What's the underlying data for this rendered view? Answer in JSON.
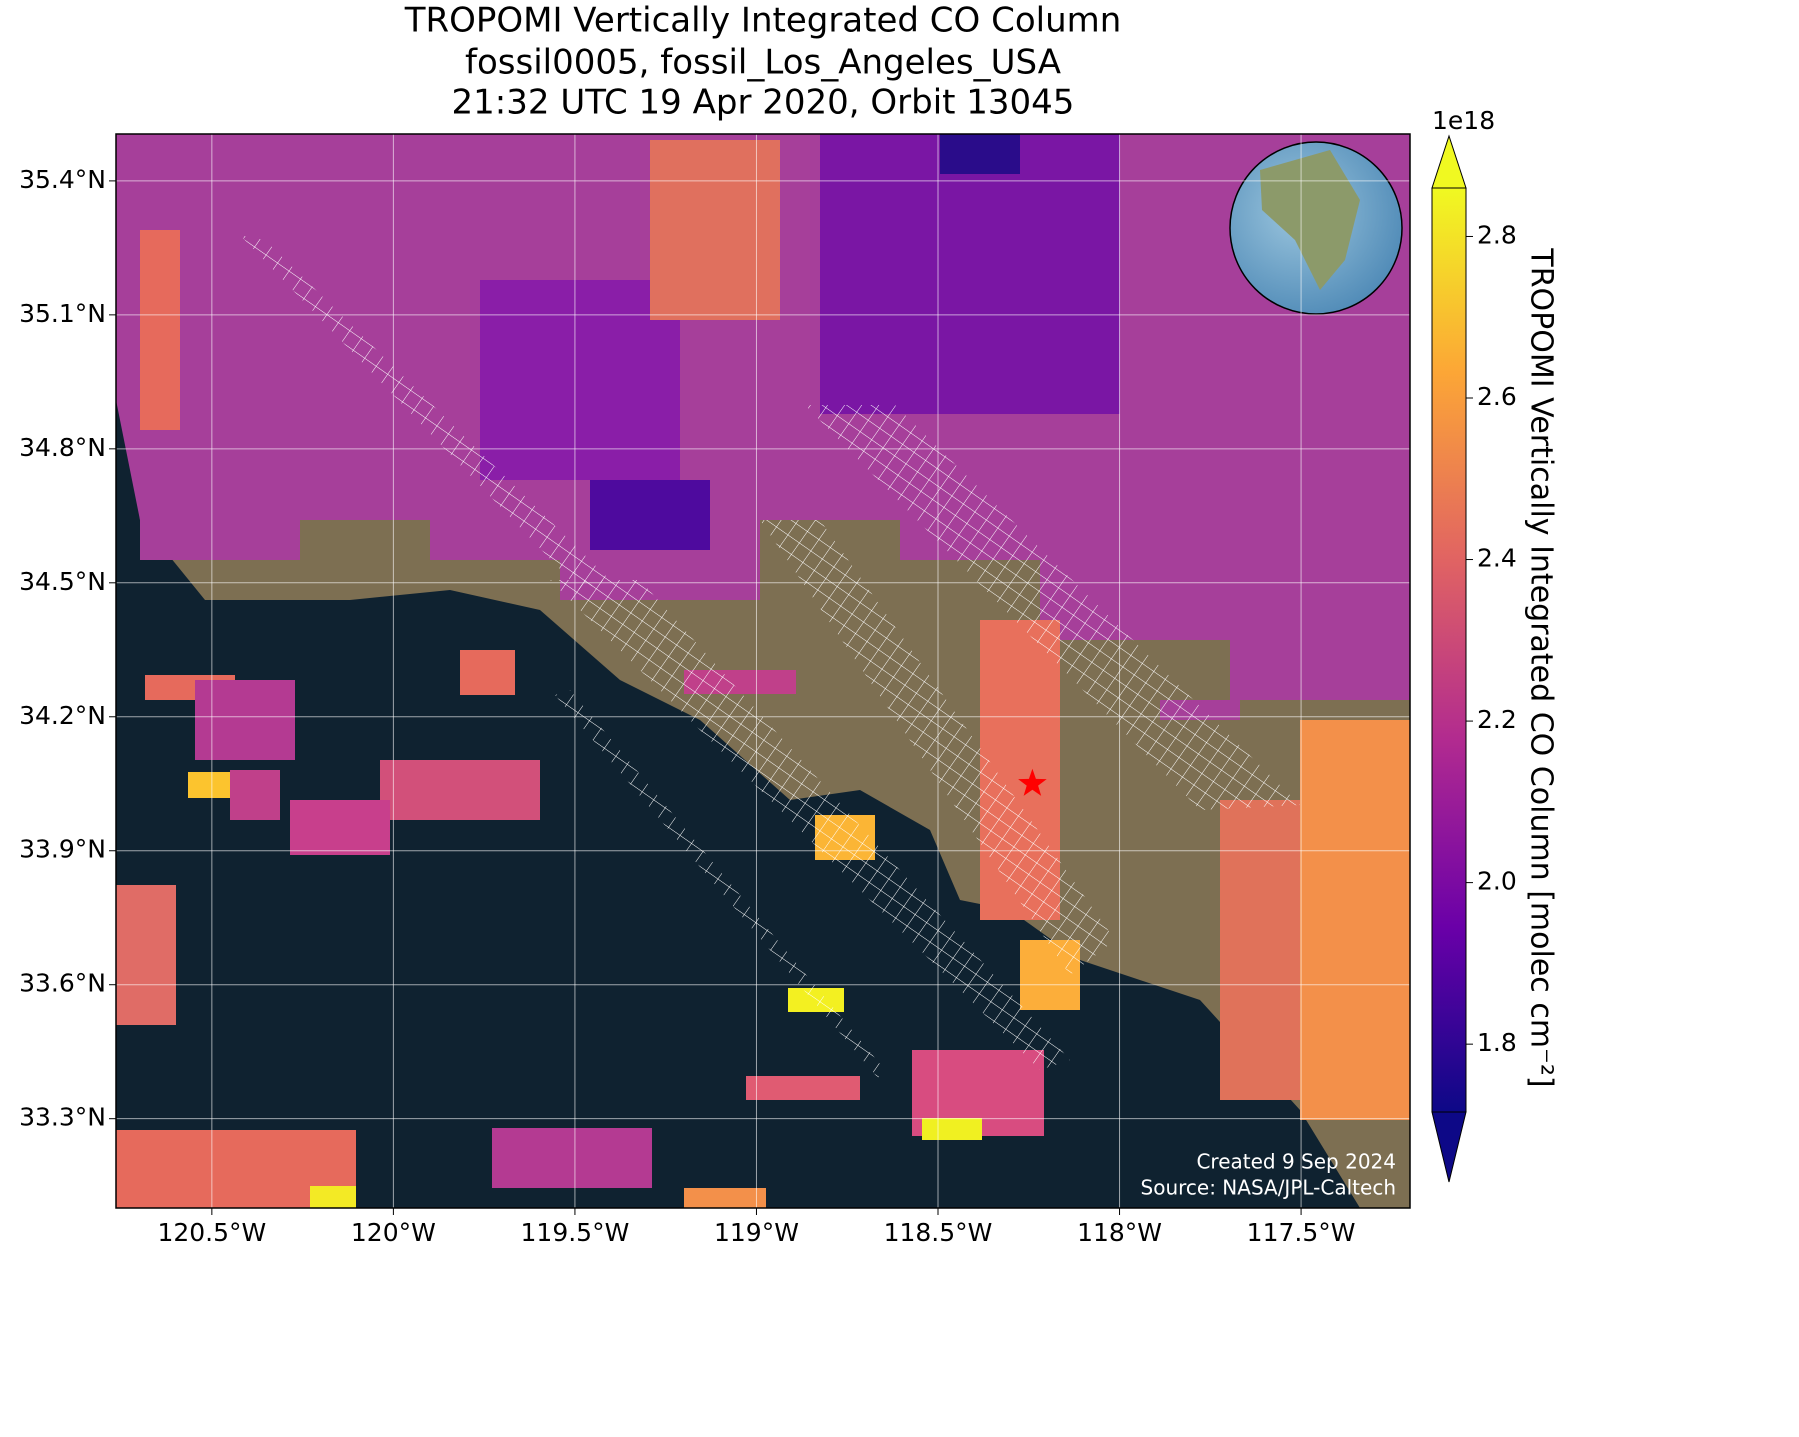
{
  "title": [
    "TROPOMI Vertically Integrated CO Column",
    "fossil0005, fossil_Los_Angeles_USA",
    "21:32 UTC 19 Apr 2020, Orbit 13045"
  ],
  "map": {
    "xlim": [
      -120.764,
      -117.2
    ],
    "ylim": [
      33.1,
      35.505
    ],
    "xticks": [
      {
        "value": -120.5,
        "label": "120.5°W"
      },
      {
        "value": -120,
        "label": "120°W"
      },
      {
        "value": -119.5,
        "label": "119.5°W"
      },
      {
        "value": -119,
        "label": "119°W"
      },
      {
        "value": -118.5,
        "label": "118.5°W"
      },
      {
        "value": -118,
        "label": "118°W"
      },
      {
        "value": -117.5,
        "label": "117.5°W"
      }
    ],
    "yticks": [
      {
        "value": 33.3,
        "label": "33.3°N"
      },
      {
        "value": 33.6,
        "label": "33.6°N"
      },
      {
        "value": 33.9,
        "label": "33.9°N"
      },
      {
        "value": 34.2,
        "label": "34.2°N"
      },
      {
        "value": 34.5,
        "label": "34.5°N"
      },
      {
        "value": 34.8,
        "label": "34.8°N"
      },
      {
        "value": 35.1,
        "label": "35.1°N"
      },
      {
        "value": 35.4,
        "label": "35.4°N"
      }
    ],
    "grid": true,
    "site": {
      "lon": -118.24,
      "lat": 34.05,
      "color": "#ff0000"
    }
  },
  "colorbar": {
    "label": "TROPOMI Vertically Integrated CO Column [molec cm⁻²]",
    "offset_label": "1e18",
    "lim": [
      1.716,
      2.86
    ],
    "ticks": [
      1.8,
      2.0,
      2.2,
      2.4,
      2.6,
      2.8
    ],
    "tick_labels": [
      "1.8",
      "2.0",
      "2.2",
      "2.4",
      "2.6",
      "2.8"
    ],
    "colormap": "plasma"
  },
  "credits": [
    "Created 9 Sep 2024",
    "Source: NASA/JPL-Caltech"
  ]
}
